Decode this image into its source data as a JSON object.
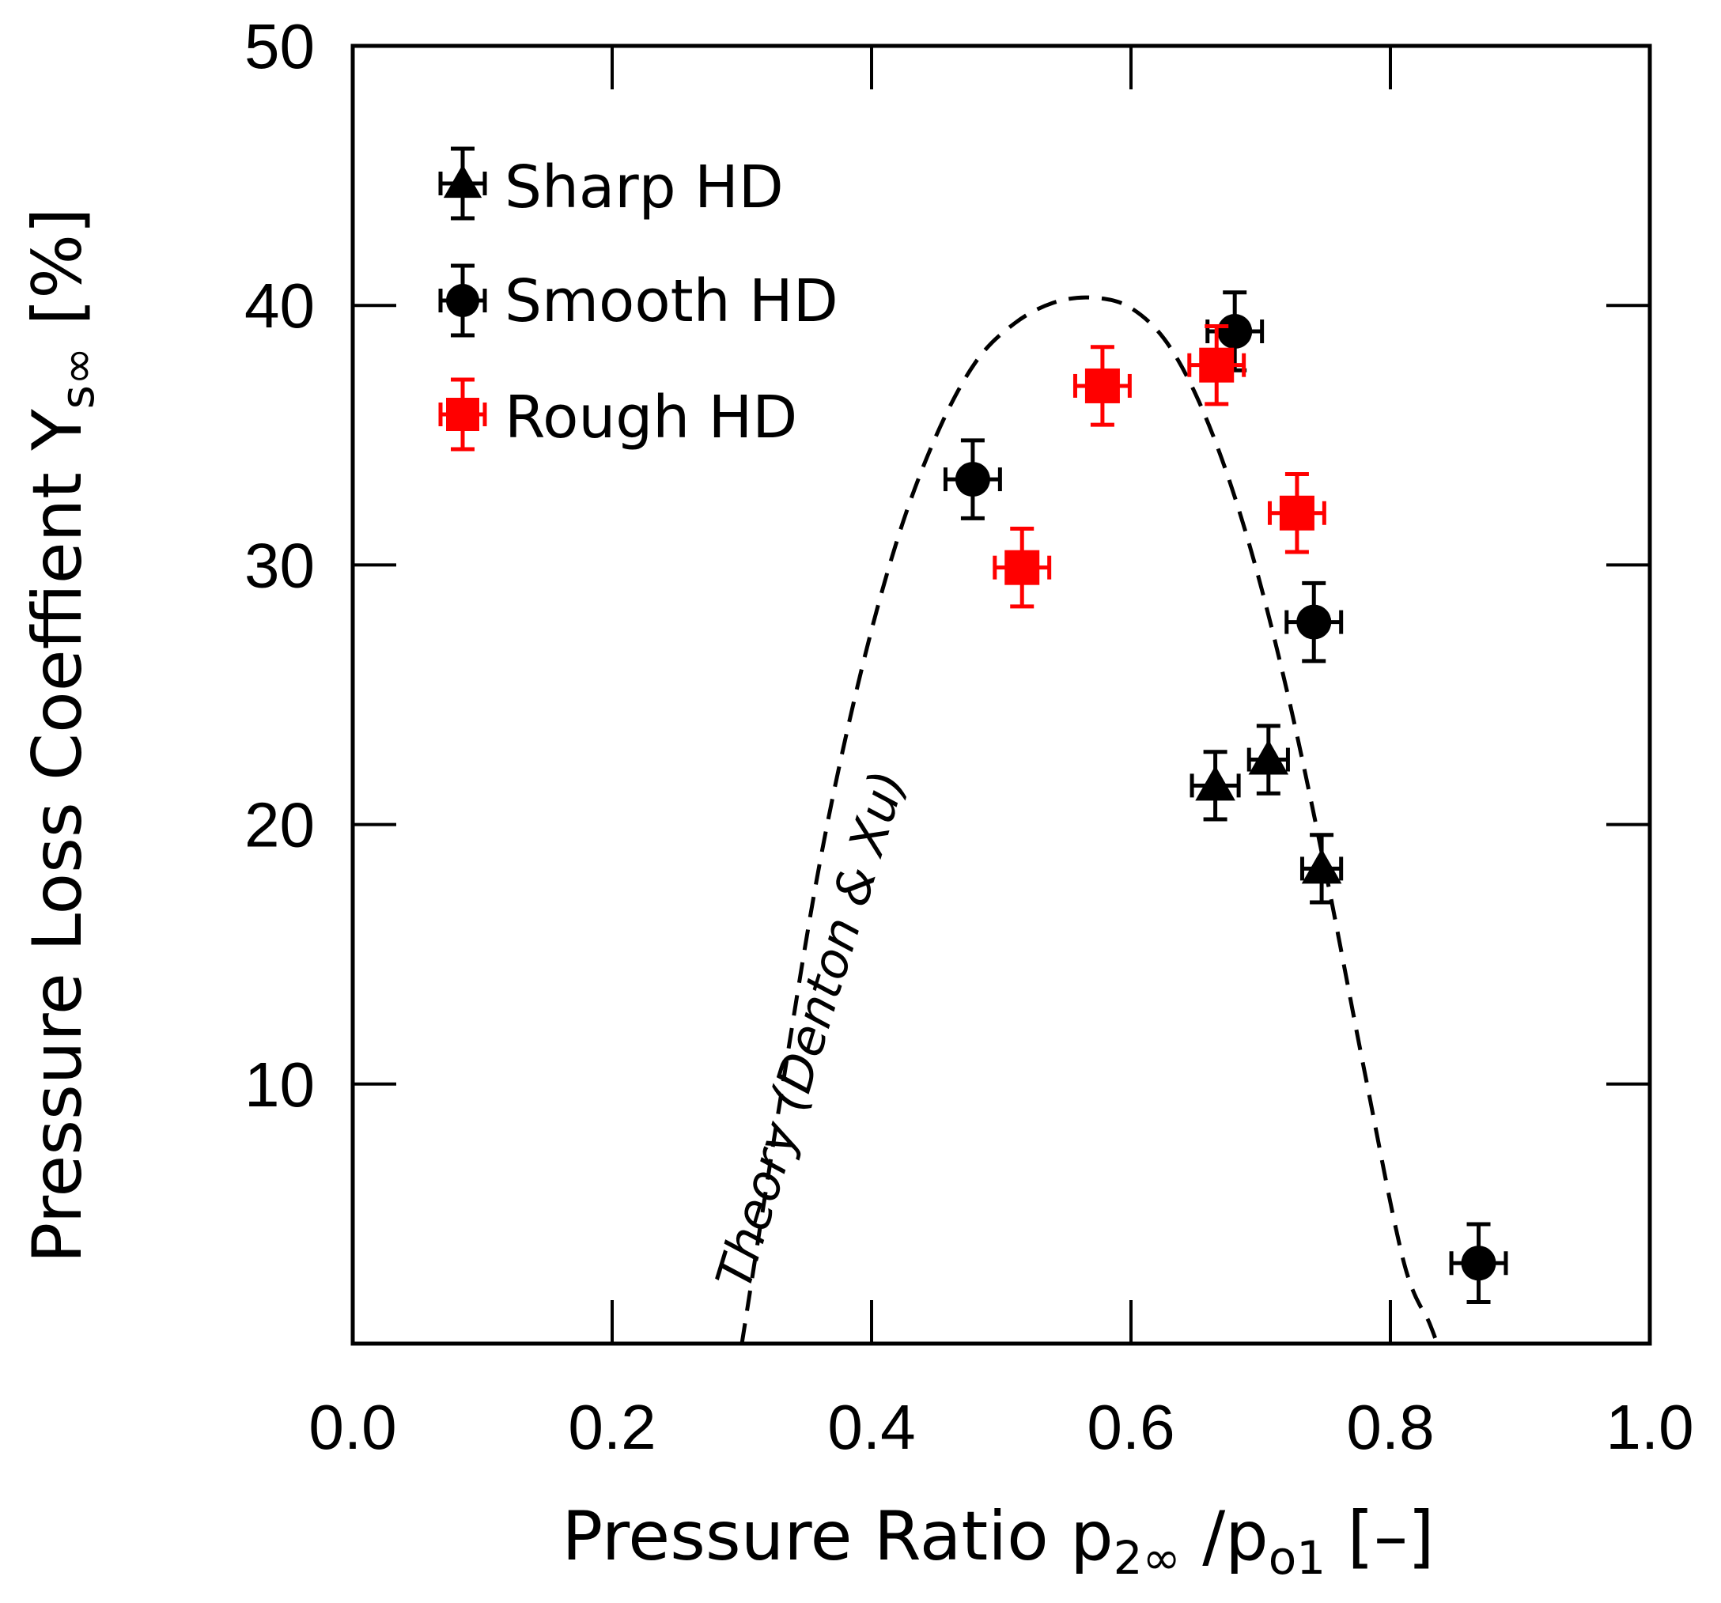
{
  "chart_data": {
    "type": "scatter",
    "title": "",
    "xlabel": "Pressure Ratio p",
    "xlabel_sub1": "2∞",
    "xlabel_mid": " /p",
    "xlabel_sub2": "o1",
    "xlabel_tail": " [–]",
    "ylabel": "Pressure Loss  Coeffient  Y",
    "ylabel_sub": "s∞",
    "ylabel_tail": "  [%]",
    "xlim": [
      0.0,
      1.0
    ],
    "ylim": [
      0,
      50
    ],
    "xticks": [
      0.0,
      0.2,
      0.4,
      0.6,
      0.8,
      1.0
    ],
    "xtick_labels": [
      "0.0",
      "0.2",
      "0.4",
      "0.6",
      "0.8",
      "1.0"
    ],
    "yticks": [
      10,
      20,
      30,
      40,
      50
    ],
    "ytick_labels": [
      "10",
      "20",
      "30",
      "40",
      "50"
    ],
    "legend_position": "top-left",
    "series": [
      {
        "name": "Sharp HD",
        "marker": "triangle",
        "color": "#000000",
        "points": [
          {
            "x": 0.665,
            "y": 21.5,
            "xerr": 0.018,
            "yerr": 1.3
          },
          {
            "x": 0.706,
            "y": 22.5,
            "xerr": 0.015,
            "yerr": 1.3
          },
          {
            "x": 0.747,
            "y": 18.3,
            "xerr": 0.015,
            "yerr": 1.3
          }
        ]
      },
      {
        "name": "Smooth HD",
        "marker": "circle",
        "color": "#000000",
        "points": [
          {
            "x": 0.478,
            "y": 33.3,
            "xerr": 0.021,
            "yerr": 1.5
          },
          {
            "x": 0.68,
            "y": 39.0,
            "xerr": 0.021,
            "yerr": 1.5
          },
          {
            "x": 0.741,
            "y": 27.8,
            "xerr": 0.021,
            "yerr": 1.5
          },
          {
            "x": 0.868,
            "y": 3.1,
            "xerr": 0.021,
            "yerr": 1.5
          }
        ]
      },
      {
        "name": "Rough HD",
        "marker": "square",
        "color": "#ff0000",
        "points": [
          {
            "x": 0.516,
            "y": 29.9,
            "xerr": 0.021,
            "yerr": 1.5
          },
          {
            "x": 0.578,
            "y": 36.9,
            "xerr": 0.021,
            "yerr": 1.5
          },
          {
            "x": 0.666,
            "y": 37.7,
            "xerr": 0.021,
            "yerr": 1.5
          },
          {
            "x": 0.728,
            "y": 32.0,
            "xerr": 0.021,
            "yerr": 1.5
          }
        ]
      }
    ],
    "theory_curve": {
      "name": "Theory (Denton & Xu)",
      "style": "dashed",
      "x": [
        0.3,
        0.33,
        0.36,
        0.39,
        0.42,
        0.45,
        0.48,
        0.51,
        0.54,
        0.57,
        0.6,
        0.63,
        0.66,
        0.69,
        0.72,
        0.75,
        0.78,
        0.81,
        0.83,
        0.836
      ],
      "y": [
        0.0,
        9.5,
        18.5,
        25.5,
        31.0,
        35.0,
        37.8,
        39.3,
        40.1,
        40.3,
        39.9,
        38.4,
        35.4,
        31.0,
        25.2,
        18.2,
        10.5,
        3.2,
        0.8,
        0.0
      ]
    },
    "annotations": [
      {
        "text": "Theory (Denton & Xu)",
        "x": 0.305,
        "y": 2.0,
        "rotation_deg": -73
      }
    ]
  }
}
